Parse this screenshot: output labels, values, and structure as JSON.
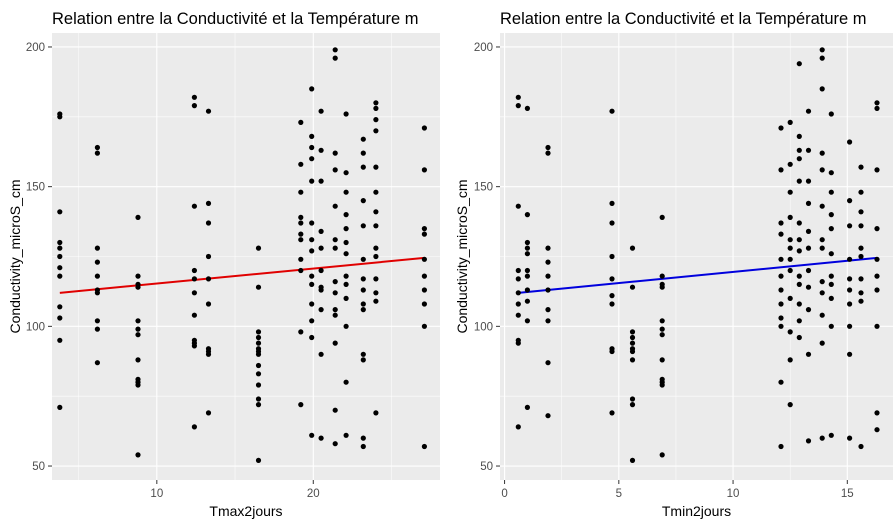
{
  "chart_data": [
    {
      "type": "scatter",
      "title": "Relation entre la Conductivité et la Température m",
      "xlabel": "Tmax2jours",
      "ylabel": "Conductivity_microS_cm",
      "xlim": [
        3.3,
        28.1
      ],
      "ylim": [
        45,
        205
      ],
      "xticks": [
        10,
        20
      ],
      "yticks": [
        50,
        100,
        150,
        200
      ],
      "grid": true,
      "fit_line": {
        "color": "#e00000",
        "x": [
          3.8,
          27.1
        ],
        "y": [
          112.0,
          124.5
        ]
      },
      "points": {
        "x": [
          3.8,
          3.8,
          3.8,
          3.8,
          3.8,
          3.8,
          3.8,
          3.8,
          3.8,
          3.8,
          3.8,
          3.8,
          6.2,
          6.2,
          6.2,
          6.2,
          6.2,
          6.2,
          6.2,
          6.2,
          6.2,
          6.2,
          8.8,
          8.8,
          8.8,
          8.8,
          8.8,
          8.8,
          8.8,
          8.8,
          8.8,
          8.8,
          8.8,
          8.8,
          12.4,
          12.4,
          12.4,
          12.4,
          12.4,
          12.4,
          12.4,
          12.4,
          12.4,
          12.4,
          12.4,
          13.3,
          13.3,
          13.3,
          13.3,
          13.3,
          13.3,
          13.3,
          13.3,
          13.3,
          13.3,
          16.5,
          16.5,
          16.5,
          16.5,
          16.5,
          16.5,
          16.5,
          16.5,
          16.5,
          16.5,
          16.5,
          16.5,
          16.5,
          16.5,
          19.2,
          19.2,
          19.2,
          19.2,
          19.2,
          19.2,
          19.2,
          19.2,
          19.2,
          19.2,
          19.2,
          19.9,
          19.9,
          19.9,
          19.9,
          19.9,
          19.9,
          19.9,
          19.9,
          19.9,
          19.9,
          19.9,
          19.9,
          19.9,
          19.9,
          20.5,
          20.5,
          20.5,
          20.5,
          20.5,
          20.5,
          20.5,
          20.5,
          20.5,
          20.5,
          20.5,
          21.4,
          21.4,
          21.4,
          21.4,
          21.4,
          21.4,
          21.4,
          21.4,
          21.4,
          21.4,
          21.4,
          21.4,
          21.4,
          21.4,
          22.1,
          22.1,
          22.1,
          22.1,
          22.1,
          22.1,
          22.1,
          22.1,
          22.1,
          22.1,
          22.1,
          22.1,
          22.1,
          23.2,
          23.2,
          23.2,
          23.2,
          23.2,
          23.2,
          23.2,
          23.2,
          23.2,
          23.2,
          23.2,
          23.2,
          23.2,
          23.2,
          24.0,
          24.0,
          24.0,
          24.0,
          24.0,
          24.0,
          24.0,
          24.0,
          24.0,
          24.0,
          24.0,
          24.0,
          24.0,
          24.0,
          27.1,
          27.1,
          27.1,
          27.1,
          27.1,
          27.1,
          27.1,
          27.1,
          27.1,
          27.1
        ],
        "y": [
          176,
          175,
          141,
          130,
          128,
          125,
          121,
          118,
          107,
          103,
          95,
          71,
          164,
          162,
          128,
          123,
          118,
          113,
          112,
          102,
          99,
          87,
          139,
          118,
          115,
          114,
          102,
          99,
          97,
          88,
          81,
          80,
          79,
          54,
          182,
          179,
          143,
          120,
          117,
          112,
          104,
          95,
          94,
          93,
          64,
          177,
          144,
          137,
          125,
          117,
          108,
          92,
          91,
          90,
          69,
          128,
          114,
          98,
          96,
          94,
          92,
          91,
          90,
          86,
          83,
          79,
          74,
          72,
          52,
          173,
          158,
          148,
          139,
          137,
          133,
          131,
          124,
          120,
          98,
          72,
          185,
          168,
          164,
          160,
          152,
          137,
          131,
          127,
          118,
          115,
          108,
          102,
          96,
          61,
          177,
          163,
          152,
          134,
          128,
          120,
          114,
          113,
          106,
          90,
          60,
          199,
          196,
          162,
          156,
          143,
          131,
          128,
          116,
          112,
          106,
          104,
          94,
          70,
          58,
          176,
          155,
          148,
          140,
          135,
          130,
          126,
          118,
          115,
          110,
          100,
          80,
          61,
          167,
          162,
          157,
          145,
          136,
          124,
          117,
          113,
          108,
          106,
          90,
          88,
          60,
          57,
          180,
          178,
          174,
          170,
          157,
          148,
          141,
          136,
          128,
          125,
          117,
          112,
          109,
          69,
          171,
          156,
          135,
          133,
          124,
          118,
          113,
          108,
          100,
          57
        ]
      }
    },
    {
      "type": "scatter",
      "title": "Relation entre la Conductivité et la Température m",
      "xlabel": "Tmin2jours",
      "ylabel": "Conductivity_microS_cm",
      "xlim": [
        -0.2,
        17.0
      ],
      "ylim": [
        45,
        205
      ],
      "xticks": [
        0,
        5,
        10,
        15
      ],
      "yticks": [
        50,
        100,
        150,
        200
      ],
      "grid": true,
      "fit_line": {
        "color": "#0000dd",
        "x": [
          0.6,
          16.3
        ],
        "y": [
          112.0,
          124.5
        ]
      },
      "points": {
        "x": [
          0.6,
          0.6,
          0.6,
          0.6,
          0.6,
          0.6,
          0.6,
          0.6,
          0.6,
          0.6,
          0.6,
          1.0,
          1.0,
          1.0,
          1.0,
          1.0,
          1.0,
          1.0,
          1.0,
          1.0,
          1.0,
          1.0,
          1.9,
          1.9,
          1.9,
          1.9,
          1.9,
          1.9,
          1.9,
          1.9,
          1.9,
          1.9,
          4.7,
          4.7,
          4.7,
          4.7,
          4.7,
          4.7,
          4.7,
          4.7,
          4.7,
          4.7,
          5.6,
          5.6,
          5.6,
          5.6,
          5.6,
          5.6,
          5.6,
          5.6,
          5.6,
          5.6,
          5.6,
          6.9,
          6.9,
          6.9,
          6.9,
          6.9,
          6.9,
          6.9,
          6.9,
          6.9,
          6.9,
          6.9,
          6.9,
          12.1,
          12.1,
          12.1,
          12.1,
          12.1,
          12.1,
          12.1,
          12.1,
          12.1,
          12.1,
          12.1,
          12.1,
          12.5,
          12.5,
          12.5,
          12.5,
          12.5,
          12.5,
          12.5,
          12.5,
          12.5,
          12.5,
          12.5,
          12.5,
          12.9,
          12.9,
          12.9,
          12.9,
          12.9,
          12.9,
          12.9,
          12.9,
          12.9,
          12.9,
          12.9,
          12.9,
          12.9,
          13.3,
          13.3,
          13.3,
          13.3,
          13.3,
          13.3,
          13.3,
          13.3,
          13.3,
          13.3,
          13.3,
          13.9,
          13.9,
          13.9,
          13.9,
          13.9,
          13.9,
          13.9,
          13.9,
          13.9,
          13.9,
          13.9,
          13.9,
          13.9,
          14.3,
          14.3,
          14.3,
          14.3,
          14.3,
          14.3,
          14.3,
          14.3,
          14.3,
          14.3,
          14.3,
          15.1,
          15.1,
          15.1,
          15.1,
          15.1,
          15.1,
          15.1,
          15.1,
          15.1,
          15.1,
          15.6,
          15.6,
          15.6,
          15.6,
          15.6,
          15.6,
          15.6,
          15.6,
          15.6,
          15.6,
          16.3,
          16.3,
          16.3,
          16.3,
          16.3,
          16.3,
          16.3,
          16.3,
          16.3,
          16.3
        ],
        "y": [
          182,
          179,
          143,
          120,
          117,
          112,
          108,
          104,
          95,
          94,
          64,
          178,
          140,
          130,
          128,
          126,
          120,
          118,
          113,
          109,
          102,
          71,
          164,
          162,
          128,
          123,
          118,
          113,
          106,
          102,
          87,
          68,
          177,
          144,
          137,
          125,
          117,
          111,
          108,
          92,
          91,
          69,
          128,
          114,
          98,
          96,
          94,
          92,
          91,
          88,
          74,
          72,
          52,
          139,
          118,
          115,
          114,
          102,
          99,
          97,
          88,
          81,
          80,
          79,
          54,
          171,
          156,
          137,
          133,
          124,
          118,
          113,
          108,
          103,
          100,
          80,
          57,
          173,
          158,
          148,
          139,
          131,
          128,
          124,
          120,
          110,
          98,
          88,
          72,
          194,
          168,
          163,
          160,
          152,
          137,
          131,
          127,
          118,
          115,
          108,
          102,
          96,
          177,
          163,
          152,
          144,
          134,
          128,
          120,
          114,
          106,
          90,
          59,
          199,
          196,
          185,
          162,
          156,
          143,
          131,
          128,
          116,
          112,
          104,
          94,
          60,
          176,
          155,
          148,
          140,
          135,
          126,
          118,
          115,
          110,
          100,
          61,
          166,
          145,
          136,
          124,
          117,
          113,
          108,
          100,
          90,
          60,
          157,
          148,
          141,
          136,
          128,
          125,
          117,
          112,
          109,
          57,
          180,
          178,
          156,
          135,
          124,
          118,
          113,
          100,
          69,
          63
        ]
      }
    }
  ]
}
